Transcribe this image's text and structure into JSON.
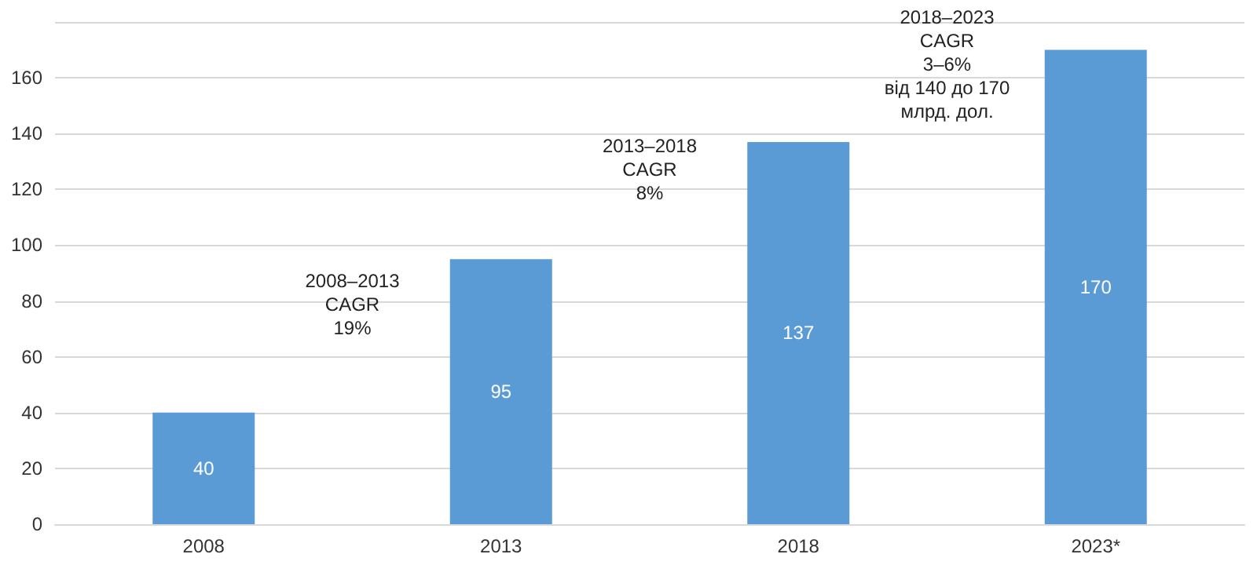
{
  "chart_data": {
    "type": "bar",
    "categories": [
      "2008",
      "2013",
      "2018",
      "2023*"
    ],
    "values": [
      40,
      95,
      137,
      170
    ],
    "color": "#5b9bd5",
    "ylim": [
      0,
      180
    ],
    "yticks": [
      0,
      20,
      40,
      60,
      80,
      100,
      120,
      140,
      160,
      {
        "value": 180,
        "label": null
      }
    ],
    "grid": "y",
    "data_labels": true,
    "annotations": [
      "2008–2013\nCAGR\n19%",
      "2013–2018\nCAGR\n8%",
      "2018–2023\nCAGR\n3–6%\nвід 140 до 170\nмлрд. дол."
    ]
  }
}
